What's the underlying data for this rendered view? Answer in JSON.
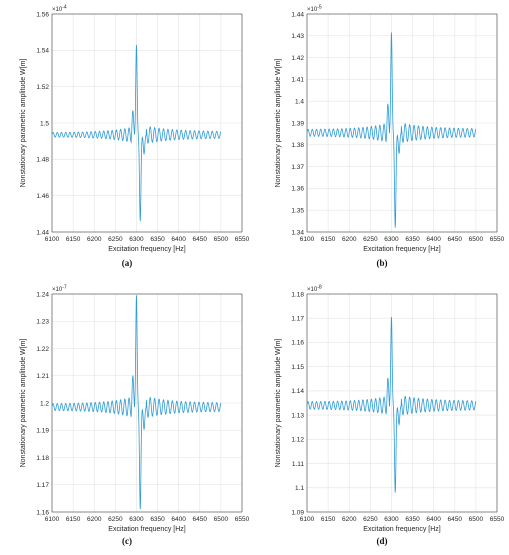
{
  "colors": {
    "line": "#2E9BD6",
    "grid": "#e3e3e3",
    "axis": "#262626"
  },
  "chart_data": [
    {
      "type": "line",
      "panel_label": "(a)",
      "xlabel": "Excitation frequency [Hz]",
      "ylabel": "Nonstationary parametric amplitude W[m]",
      "exponent_base": "×10",
      "exponent_power": "-4",
      "xlim": [
        6100,
        6550
      ],
      "ylim": [
        1.44,
        1.56
      ],
      "xticks": [
        "6100",
        "6150",
        "6200",
        "6250",
        "6300",
        "6350",
        "6400",
        "6450",
        "6500",
        "6550"
      ],
      "yticks": [
        "1.44",
        "1.46",
        "1.48",
        "1.5",
        "1.52",
        "1.54",
        "1.56"
      ],
      "grid": true,
      "signal": {
        "base": 1.4935,
        "x_start": 6100,
        "x_end": 6500,
        "peak_x": 6300,
        "peak_y": 1.543,
        "trough_x": 6309,
        "trough_y": 1.446,
        "left_ripple": 0.0012,
        "right_ripple": 0.0018
      }
    },
    {
      "type": "line",
      "panel_label": "(b)",
      "xlabel": "Excitation frequency [Hz]",
      "ylabel": "Nonstationary parametric amplitude W[m]",
      "exponent_base": "×10",
      "exponent_power": "-5",
      "xlim": [
        6100,
        6550
      ],
      "ylim": [
        1.34,
        1.44
      ],
      "xticks": [
        "6100",
        "6150",
        "6200",
        "6250",
        "6300",
        "6350",
        "6400",
        "6450",
        "6500",
        "6550"
      ],
      "yticks": [
        "1.34",
        "1.35",
        "1.36",
        "1.37",
        "1.38",
        "1.39",
        "1.4",
        "1.41",
        "1.42",
        "1.43",
        "1.44"
      ],
      "grid": true,
      "signal": {
        "base": 1.3855,
        "x_start": 6100,
        "x_end": 6500,
        "peak_x": 6300,
        "peak_y": 1.4315,
        "trough_x": 6309,
        "trough_y": 1.342,
        "left_ripple": 0.0015,
        "right_ripple": 0.0018
      }
    },
    {
      "type": "line",
      "panel_label": "(c)",
      "xlabel": "Excitation frequency [Hz]",
      "ylabel": "Nonstationary parametric amplitude W[m]",
      "exponent_base": "×10",
      "exponent_power": "-7",
      "xlim": [
        6100,
        6550
      ],
      "ylim": [
        1.16,
        1.24
      ],
      "xticks": [
        "6100",
        "6150",
        "6200",
        "6250",
        "6300",
        "6350",
        "6400",
        "6450",
        "6500",
        "6550"
      ],
      "yticks": [
        "1.16",
        "1.17",
        "1.18",
        "1.19",
        "1.2",
        "1.21",
        "1.22",
        "1.23",
        "1.24"
      ],
      "grid": true,
      "signal": {
        "base": 1.1985,
        "x_start": 6100,
        "x_end": 6500,
        "peak_x": 6300,
        "peak_y": 1.2395,
        "trough_x": 6309,
        "trough_y": 1.161,
        "left_ripple": 0.0012,
        "right_ripple": 0.0015
      }
    },
    {
      "type": "line",
      "panel_label": "(d)",
      "xlabel": "Excitation frequency [Hz]",
      "ylabel": "Nonstationary parametric amplitude W[m]",
      "exponent_base": "×10",
      "exponent_power": "-8",
      "xlim": [
        6100,
        6550
      ],
      "ylim": [
        1.09,
        1.18
      ],
      "xticks": [
        "6100",
        "6150",
        "6200",
        "6250",
        "6300",
        "6350",
        "6400",
        "6450",
        "6500",
        "6550"
      ],
      "yticks": [
        "1.09",
        "1.1",
        "1.11",
        "1.12",
        "1.13",
        "1.14",
        "1.15",
        "1.16",
        "1.17",
        "1.18"
      ],
      "grid": true,
      "signal": {
        "base": 1.134,
        "x_start": 6100,
        "x_end": 6500,
        "peak_x": 6300,
        "peak_y": 1.1705,
        "trough_x": 6309,
        "trough_y": 1.098,
        "left_ripple": 0.0015,
        "right_ripple": 0.0018
      }
    }
  ]
}
